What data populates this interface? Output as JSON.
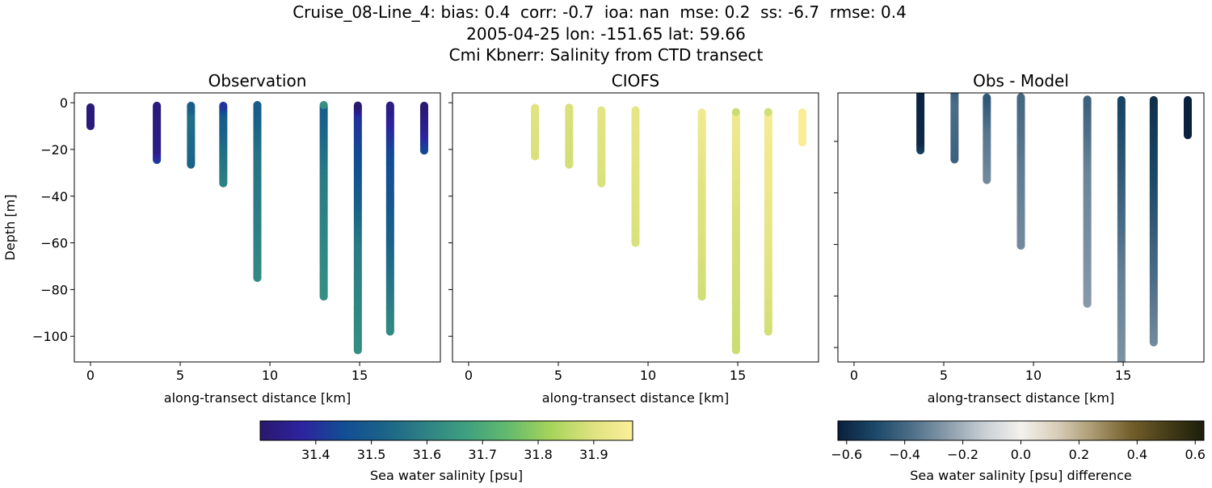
{
  "figure": {
    "title_lines": [
      "Cruise_08-Line_4: bias: 0.4  corr: -0.7  ioa: nan  mse: 0.2  ss: -6.7  rmse: 0.4",
      "2005-04-25 lon: -151.65 lat: 59.66",
      "Cmi Kbnerr: Salinity from CTD transect"
    ]
  },
  "chart_data": [
    {
      "type": "scatter",
      "title": "Observation",
      "xlabel": "along-transect distance [km]",
      "ylabel": "Depth [m]",
      "xlim": [
        -0.9,
        19.5
      ],
      "ylim": [
        -111,
        4.2
      ],
      "xticks": [
        0,
        5,
        10,
        15
      ],
      "xtick_labels": [
        "0",
        "5",
        "10",
        "15"
      ],
      "yticks": [
        0,
        -20,
        -40,
        -60,
        -80,
        -100
      ],
      "ytick_labels": [
        "0",
        "−20",
        "−40",
        "−60",
        "−80",
        "−100"
      ],
      "colormap": "haline",
      "casts": [
        {
          "x": 0.0,
          "profile": [
            [
              -2,
              31.32
            ],
            [
              -10,
              31.32
            ]
          ]
        },
        {
          "x": 3.7,
          "profile": [
            [
              -1,
              31.32
            ],
            [
              -20,
              31.34
            ],
            [
              -24.5,
              31.42
            ]
          ]
        },
        {
          "x": 5.6,
          "profile": [
            [
              -1,
              31.5
            ],
            [
              -5,
              31.55
            ],
            [
              -26.5,
              31.52
            ]
          ]
        },
        {
          "x": 7.4,
          "profile": [
            [
              -1,
              31.4
            ],
            [
              -5,
              31.5
            ],
            [
              -34.5,
              31.6
            ]
          ]
        },
        {
          "x": 9.3,
          "profile": [
            [
              -1,
              31.5
            ],
            [
              -20,
              31.56
            ],
            [
              -75,
              31.62
            ]
          ]
        },
        {
          "x": 13.0,
          "profile": [
            [
              -1,
              31.5
            ],
            [
              -30,
              31.58
            ],
            [
              -83,
              31.63
            ]
          ]
        },
        {
          "x": 14.9,
          "profile": [
            [
              -1,
              31.3
            ],
            [
              -5,
              31.4
            ],
            [
              -30,
              31.47
            ],
            [
              -60,
              31.58
            ],
            [
              -106,
              31.63
            ]
          ]
        },
        {
          "x": 16.7,
          "profile": [
            [
              -1,
              31.33
            ],
            [
              -20,
              31.44
            ],
            [
              -50,
              31.5
            ],
            [
              -98,
              31.62
            ]
          ]
        },
        {
          "x": 18.6,
          "profile": [
            [
              -1,
              31.31
            ],
            [
              -12,
              31.36
            ],
            [
              -20.5,
              31.45
            ]
          ]
        }
      ]
    },
    {
      "type": "scatter",
      "title": "CIOFS",
      "xlabel": "along-transect distance [km]",
      "xlim": [
        -0.9,
        19.5
      ],
      "ylim": [
        -111,
        4.2
      ],
      "xticks": [
        0,
        5,
        10,
        15
      ],
      "xtick_labels": [
        "0",
        "5",
        "10",
        "15"
      ],
      "yticks": [
        0,
        -20,
        -40,
        -60,
        -80,
        -100
      ],
      "colormap": "haline",
      "casts": [
        {
          "x": 3.7,
          "profile": [
            [
              -2,
              31.9
            ],
            [
              -23,
              31.89
            ]
          ]
        },
        {
          "x": 5.6,
          "profile": [
            [
              -2,
              31.89
            ],
            [
              -26.5,
              31.88
            ]
          ]
        },
        {
          "x": 7.4,
          "profile": [
            [
              -3,
              31.91
            ],
            [
              -34.5,
              31.89
            ]
          ]
        },
        {
          "x": 9.3,
          "profile": [
            [
              -3,
              31.92
            ],
            [
              -60,
              31.89
            ]
          ]
        },
        {
          "x": 13.0,
          "profile": [
            [
              -4,
              31.94
            ],
            [
              -40,
              31.9
            ],
            [
              -83,
              31.88
            ]
          ]
        },
        {
          "x": 14.9,
          "profile": [
            [
              -4,
              31.94
            ],
            [
              -50,
              31.89
            ],
            [
              -106,
              31.87
            ]
          ]
        },
        {
          "x": 16.7,
          "profile": [
            [
              -4,
              31.95
            ],
            [
              -50,
              31.92
            ],
            [
              -98,
              31.88
            ]
          ]
        },
        {
          "x": 18.6,
          "profile": [
            [
              -4,
              31.96
            ],
            [
              -17,
              31.96
            ]
          ]
        }
      ]
    },
    {
      "type": "scatter",
      "title": "Obs - Model",
      "xlabel": "along-transect distance [km]",
      "xlim": [
        -0.9,
        19.5
      ],
      "ylim": [
        -105.6,
        -1.2
      ],
      "xticks": [
        0,
        5,
        10,
        15
      ],
      "xtick_labels": [
        "0",
        "5",
        "10",
        "15"
      ],
      "yticks": [
        -20,
        -40,
        -60,
        -80,
        -100
      ],
      "colormap": "diff",
      "casts": [
        {
          "x": 3.7,
          "profile": [
            [
              -0.5,
              -0.62
            ],
            [
              -20,
              -0.6
            ],
            [
              -23.5,
              -0.52
            ]
          ]
        },
        {
          "x": 5.6,
          "profile": [
            [
              -0.5,
              -0.42
            ],
            [
              -5,
              -0.38
            ],
            [
              -27,
              -0.42
            ]
          ]
        },
        {
          "x": 7.4,
          "profile": [
            [
              -2.8,
              -0.45
            ],
            [
              -15,
              -0.36
            ],
            [
              -35,
              -0.3
            ]
          ]
        },
        {
          "x": 9.3,
          "profile": [
            [
              -2.8,
              -0.4
            ],
            [
              -30,
              -0.34
            ],
            [
              -60.5,
              -0.3
            ]
          ]
        },
        {
          "x": 13.0,
          "profile": [
            [
              -3.7,
              -0.42
            ],
            [
              -30,
              -0.32
            ],
            [
              -83,
              -0.26
            ]
          ]
        },
        {
          "x": 14.9,
          "profile": [
            [
              -3.7,
              -0.52
            ],
            [
              -30,
              -0.45
            ],
            [
              -70,
              -0.33
            ],
            [
              -110,
              -0.27
            ]
          ]
        },
        {
          "x": 16.7,
          "profile": [
            [
              -3.7,
              -0.58
            ],
            [
              -40,
              -0.48
            ],
            [
              -98,
              -0.3
            ]
          ]
        },
        {
          "x": 18.6,
          "profile": [
            [
              -3.7,
              -0.62
            ],
            [
              -17.6,
              -0.62
            ]
          ]
        }
      ]
    }
  ],
  "colorbars": [
    {
      "label": "Sea water salinity [psu]",
      "range": [
        31.3,
        31.97
      ],
      "ticks": [
        31.4,
        31.5,
        31.6,
        31.7,
        31.8,
        31.9
      ],
      "tick_labels": [
        "31.4",
        "31.5",
        "31.6",
        "31.7",
        "31.8",
        "31.9"
      ],
      "colors": [
        "#2a186c",
        "#2d23a0",
        "#124d94",
        "#1b6388",
        "#2e8285",
        "#3fa07e",
        "#64bb6e",
        "#a5d35a",
        "#dde27e",
        "#fdef9a"
      ]
    },
    {
      "label": "Sea water salinity [psu] difference",
      "range": [
        -0.63,
        0.63
      ],
      "ticks": [
        -0.6,
        -0.4,
        -0.2,
        0.0,
        0.2,
        0.4,
        0.6
      ],
      "tick_labels": [
        "−0.6",
        "−0.4",
        "−0.2",
        "0.0",
        "0.2",
        "0.4",
        "0.6"
      ],
      "colors": [
        "#0a1f3c",
        "#1b4868",
        "#4d6e88",
        "#8a9cab",
        "#c8cfd4",
        "#f4f1ee",
        "#d8cdb8",
        "#a9986f",
        "#735f2c",
        "#463c18",
        "#1c1d0b"
      ]
    }
  ]
}
